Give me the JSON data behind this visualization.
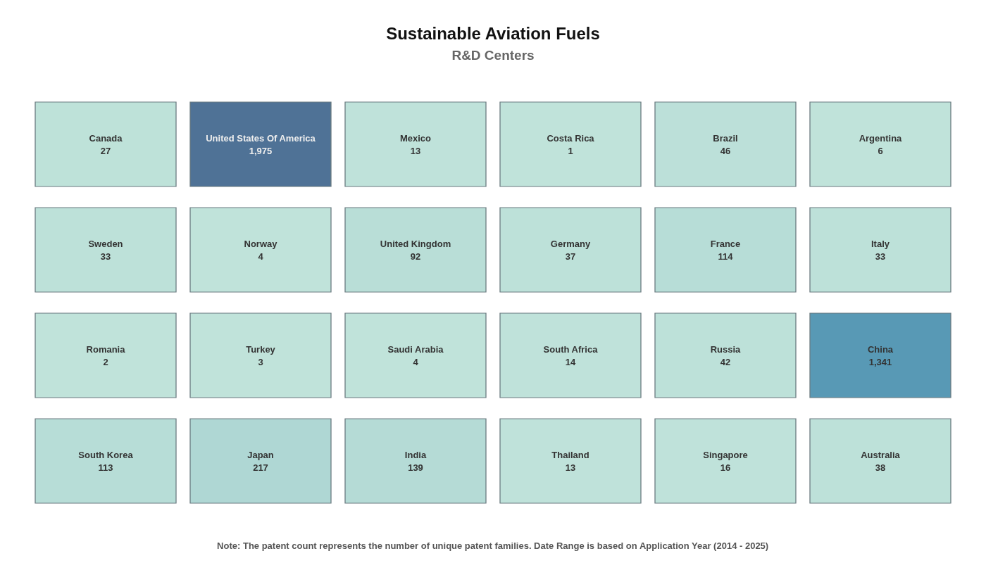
{
  "chart_data": {
    "type": "other",
    "title": "Sustainable Aviation Fuels",
    "subtitle": "R&D Centers",
    "categories": [
      "Canada",
      "United States Of America",
      "Mexico",
      "Costa Rica",
      "Brazil",
      "Argentina",
      "Sweden",
      "Norway",
      "United Kingdom",
      "Germany",
      "France",
      "Italy",
      "Romania",
      "Turkey",
      "Saudi Arabia",
      "South Africa",
      "Russia",
      "China",
      "South Korea",
      "Japan",
      "India",
      "Thailand",
      "Singapore",
      "Australia"
    ],
    "values": [
      27,
      1975,
      13,
      1,
      46,
      6,
      33,
      4,
      92,
      37,
      114,
      33,
      2,
      3,
      4,
      14,
      42,
      1341,
      113,
      217,
      139,
      13,
      16,
      38
    ],
    "value_labels": [
      "27",
      "1,975",
      "13",
      "1",
      "46",
      "6",
      "33",
      "4",
      "92",
      "37",
      "114",
      "33",
      "2",
      "3",
      "4",
      "14",
      "42",
      "1,341",
      "113",
      "217",
      "139",
      "13",
      "16",
      "38"
    ],
    "annotations": [
      "Note: The patent count represents the number of unique patent families. Date Range is based on Application Year (2014 - 2025)"
    ]
  }
}
